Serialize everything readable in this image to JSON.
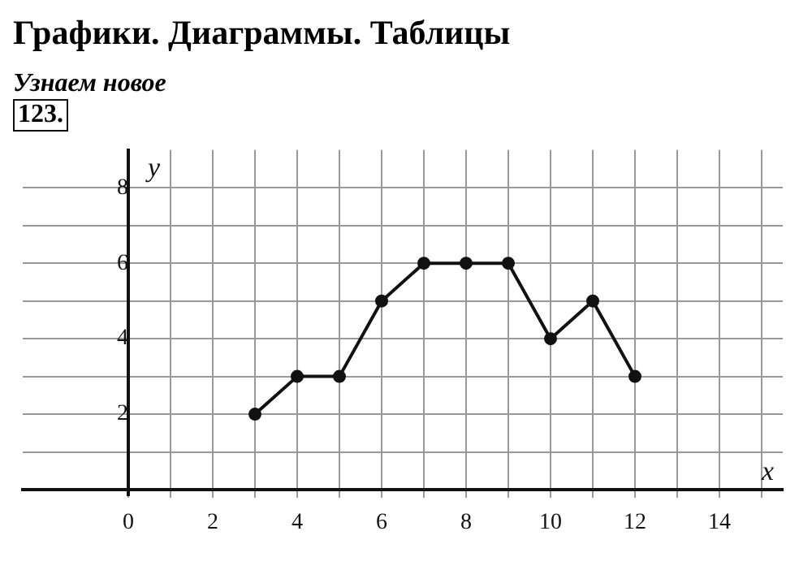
{
  "chart_data": {
    "type": "line",
    "title": "Графики. Диаграммы. Таблицы",
    "subtitle": "Узнаем новое",
    "annotations": [
      "123."
    ],
    "xlabel": "x",
    "ylabel": "y",
    "x": [
      3,
      4,
      5,
      6,
      7,
      8,
      9,
      10,
      11,
      12
    ],
    "series": [
      {
        "color": "#111111",
        "values": [
          2,
          3,
          3,
          5,
          6,
          6,
          6,
          4,
          5,
          3
        ]
      }
    ],
    "xlim": [
      -2.5,
      15.5
    ],
    "ylim": [
      -0.15,
      9
    ],
    "xticks": [
      0,
      {
        "value": 1,
        "label": null
      },
      2,
      {
        "value": 3,
        "label": null
      },
      4,
      {
        "value": 5,
        "label": null
      },
      6,
      {
        "value": 7,
        "label": null
      },
      8,
      {
        "value": 9,
        "label": null
      },
      10,
      {
        "value": 11,
        "label": null
      },
      12,
      {
        "value": 13,
        "label": null
      },
      14,
      {
        "value": 15,
        "label": null
      }
    ],
    "yticks": [
      {
        "value": 1,
        "label": null
      },
      2,
      {
        "value": 3,
        "label": null
      },
      4,
      {
        "value": 5,
        "label": null
      },
      6,
      {
        "value": 7,
        "label": null
      },
      8
    ],
    "grid": true,
    "marker": "circle",
    "line_style": "solid",
    "legend": false
  }
}
